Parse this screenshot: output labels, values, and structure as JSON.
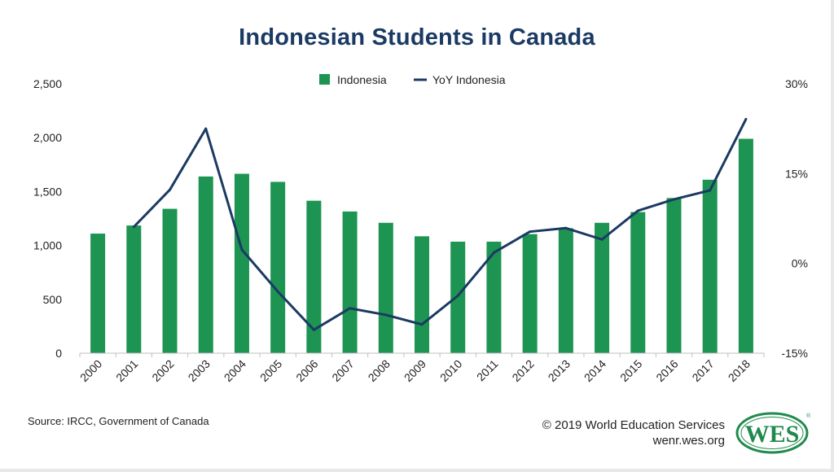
{
  "footer": {
    "source": "Source: IRCC, Government of Canada",
    "copyright": "© 2019 World Education Services",
    "site": "wenr.wes.org",
    "logo_text": "WES"
  },
  "colors": {
    "bar": "#1d9451",
    "line": "#1b3a63",
    "title": "#1b3a63",
    "logo": "#1f8a4c"
  },
  "chart_data": {
    "type": "bar",
    "title": "Indonesian Students in Canada",
    "categories": [
      "2000",
      "2001",
      "2002",
      "2003",
      "2004",
      "2005",
      "2006",
      "2007",
      "2008",
      "2009",
      "2010",
      "2011",
      "2012",
      "2013",
      "2014",
      "2015",
      "2016",
      "2017",
      "2018"
    ],
    "series": [
      {
        "name": "Indonesia",
        "type": "bar",
        "axis": "left",
        "values": [
          1110,
          1185,
          1340,
          1640,
          1665,
          1590,
          1415,
          1315,
          1210,
          1085,
          1035,
          1035,
          1105,
          1160,
          1210,
          1310,
          1440,
          1610,
          1990
        ]
      },
      {
        "name": "YoY Indonesia",
        "type": "line",
        "axis": "right",
        "values": [
          null,
          6.1,
          12.3,
          22.5,
          2.3,
          -4.7,
          -11.1,
          -7.5,
          -8.6,
          -10.2,
          -5.4,
          1.8,
          5.3,
          5.9,
          4.0,
          8.8,
          10.7,
          12.2,
          24.1
        ]
      }
    ],
    "yticks_left": [
      "0",
      "500",
      "1,000",
      "1,500",
      "2,000",
      "2,500"
    ],
    "yticks_right": [
      "-15%",
      "0%",
      "15%",
      "30%"
    ],
    "ylim_left": [
      0,
      2500
    ],
    "ylim_right": [
      -15,
      30
    ],
    "legend_position": "top-center",
    "grid": false
  }
}
